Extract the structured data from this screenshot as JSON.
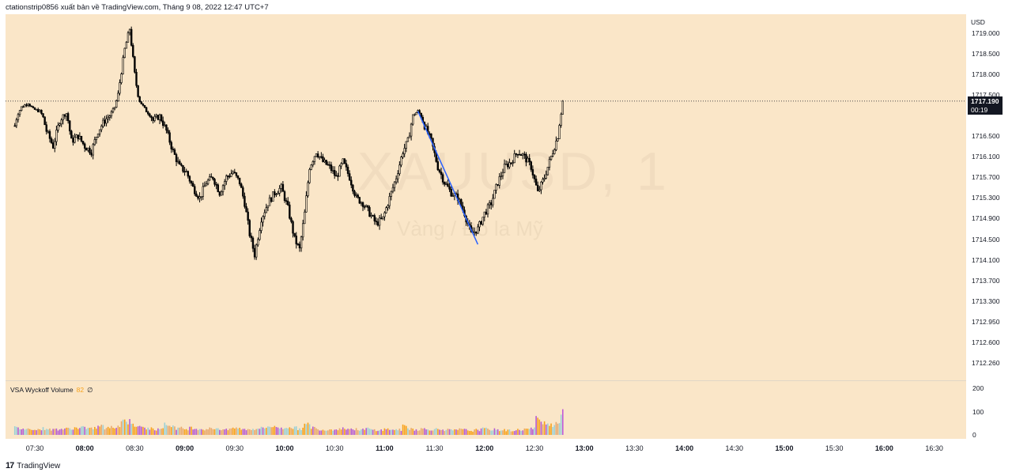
{
  "header": {
    "attribution": "ctationstrip0856 xuất bản về TradingView.com, Tháng 9 08, 2022 12:47 UTC+7"
  },
  "watermark": {
    "symbol": "XAUUSD, 1",
    "description": "Vàng / Đô la Mỹ"
  },
  "price_axis": {
    "currency": "USD",
    "labels": [
      "1719.000",
      "1718.500",
      "1718.000",
      "1717.500",
      "1716.500",
      "1716.100",
      "1715.700",
      "1715.300",
      "1714.900",
      "1714.500",
      "1714.100",
      "1713.700",
      "1713.300",
      "1712.950",
      "1712.600",
      "1712.260"
    ]
  },
  "last_price": {
    "value": "1717.190",
    "countdown": "00:19",
    "color": "#131722"
  },
  "volume_indicator": {
    "name": "VSA Wyckoff Volume",
    "value": "82",
    "extra": "∅",
    "axis_labels": [
      "200",
      "100",
      "0"
    ]
  },
  "time_axis": {
    "labels": [
      "07:30",
      "08:00",
      "08:30",
      "09:00",
      "09:30",
      "10:00",
      "10:30",
      "11:00",
      "11:30",
      "12:00",
      "12:30",
      "13:00",
      "13:30",
      "14:00",
      "14:30",
      "15:00",
      "15:30",
      "16:00",
      "16:30"
    ],
    "bold": [
      "08:00",
      "09:00",
      "10:00",
      "11:00",
      "12:00",
      "13:00",
      "14:00",
      "15:00",
      "16:00"
    ]
  },
  "footer": {
    "brand": "TradingView"
  },
  "colors": {
    "background": "#fae6c8",
    "candle": "#000000",
    "trendline": "#2962ff",
    "price_line": "#131722"
  },
  "chart_data": {
    "type": "candlestick",
    "symbol": "XAUUSD",
    "interval": "1",
    "ylim": [
      1712.26,
      1719.1
    ],
    "xlim": [
      "07:18",
      "16:51"
    ],
    "close_path": [
      [
        "07:18",
        1716.3
      ],
      [
        "07:22",
        1716.9
      ],
      [
        "07:26",
        1717.1
      ],
      [
        "07:29",
        1716.8
      ],
      [
        "07:33",
        1716.7
      ],
      [
        "07:37",
        1716.2
      ],
      [
        "07:41",
        1715.9
      ],
      [
        "07:45",
        1716.4
      ],
      [
        "07:49",
        1716.6
      ],
      [
        "07:52",
        1716.0
      ],
      [
        "07:56",
        1716.1
      ],
      [
        "08:00",
        1715.9
      ],
      [
        "08:04",
        1715.8
      ],
      [
        "08:08",
        1716.2
      ],
      [
        "08:12",
        1716.4
      ],
      [
        "08:15",
        1716.5
      ],
      [
        "08:18",
        1716.9
      ],
      [
        "08:21",
        1717.8
      ],
      [
        "08:24",
        1718.6
      ],
      [
        "08:27",
        1719.1
      ],
      [
        "08:30",
        1718.0
      ],
      [
        "08:33",
        1717.2
      ],
      [
        "08:37",
        1716.7
      ],
      [
        "08:41",
        1716.4
      ],
      [
        "08:45",
        1716.5
      ],
      [
        "08:49",
        1716.2
      ],
      [
        "08:53",
        1715.8
      ],
      [
        "08:57",
        1715.5
      ],
      [
        "09:01",
        1715.4
      ],
      [
        "09:05",
        1715.1
      ],
      [
        "09:09",
        1714.9
      ],
      [
        "09:13",
        1715.2
      ],
      [
        "09:17",
        1715.3
      ],
      [
        "09:21",
        1715.0
      ],
      [
        "09:25",
        1715.3
      ],
      [
        "09:29",
        1715.4
      ],
      [
        "09:33",
        1715.2
      ],
      [
        "09:36",
        1714.8
      ],
      [
        "09:39",
        1714.2
      ],
      [
        "09:42",
        1713.8
      ],
      [
        "09:46",
        1714.5
      ],
      [
        "09:50",
        1714.8
      ],
      [
        "09:54",
        1715.0
      ],
      [
        "09:58",
        1715.1
      ],
      [
        "10:02",
        1714.7
      ],
      [
        "10:06",
        1714.1
      ],
      [
        "10:09",
        1713.9
      ],
      [
        "10:12",
        1714.6
      ],
      [
        "10:15",
        1715.5
      ],
      [
        "10:19",
        1715.8
      ],
      [
        "10:23",
        1715.6
      ],
      [
        "10:27",
        1715.5
      ],
      [
        "10:31",
        1715.3
      ],
      [
        "10:35",
        1715.6
      ],
      [
        "10:39",
        1715.3
      ],
      [
        "10:43",
        1714.9
      ],
      [
        "10:47",
        1714.8
      ],
      [
        "10:51",
        1714.6
      ],
      [
        "10:55",
        1714.4
      ],
      [
        "10:59",
        1714.5
      ],
      [
        "11:03",
        1714.9
      ],
      [
        "11:07",
        1715.3
      ],
      [
        "11:11",
        1715.8
      ],
      [
        "11:14",
        1716.0
      ],
      [
        "11:17",
        1716.5
      ],
      [
        "11:20",
        1716.7
      ],
      [
        "11:24",
        1716.3
      ],
      [
        "11:28",
        1716.0
      ],
      [
        "11:32",
        1715.5
      ],
      [
        "11:36",
        1715.2
      ],
      [
        "11:40",
        1715.0
      ],
      [
        "11:44",
        1714.9
      ],
      [
        "11:48",
        1714.6
      ],
      [
        "11:52",
        1714.2
      ],
      [
        "11:56",
        1714.3
      ],
      [
        "12:00",
        1714.6
      ],
      [
        "12:04",
        1714.8
      ],
      [
        "12:08",
        1715.2
      ],
      [
        "12:12",
        1715.5
      ],
      [
        "12:16",
        1715.6
      ],
      [
        "12:20",
        1715.8
      ],
      [
        "12:24",
        1715.7
      ],
      [
        "12:28",
        1715.5
      ],
      [
        "12:32",
        1715.0
      ],
      [
        "12:36",
        1715.3
      ],
      [
        "12:39",
        1715.6
      ],
      [
        "12:42",
        1715.9
      ],
      [
        "12:44",
        1716.1
      ],
      [
        "12:46",
        1716.6
      ],
      [
        "12:47",
        1717.19
      ]
    ],
    "volume_ylim": [
      0,
      200
    ],
    "volume_levels": [
      31,
      28,
      25,
      27,
      24,
      28,
      23,
      25,
      26,
      27,
      30,
      34,
      25,
      30,
      38,
      29,
      33,
      40,
      62,
      58,
      42,
      32,
      28,
      24,
      33,
      44,
      38,
      29,
      26,
      31,
      28,
      25,
      27,
      29,
      25,
      22,
      30,
      27,
      24,
      26,
      29,
      31,
      38,
      33,
      28,
      36,
      30,
      27,
      44,
      33,
      25,
      22,
      24,
      26,
      29,
      27,
      24,
      23,
      27,
      22,
      21,
      25,
      24,
      22,
      37,
      28,
      23,
      26,
      24,
      25,
      24,
      22,
      20,
      24,
      22,
      18,
      22,
      26,
      24,
      23,
      21,
      20,
      19,
      22,
      25,
      27,
      68,
      60,
      45,
      53,
      112
    ],
    "trendline": {
      "from": [
        "11:20",
        1716.7
      ],
      "to": [
        "11:56",
        1714.0
      ]
    },
    "current_price": 1717.19
  }
}
